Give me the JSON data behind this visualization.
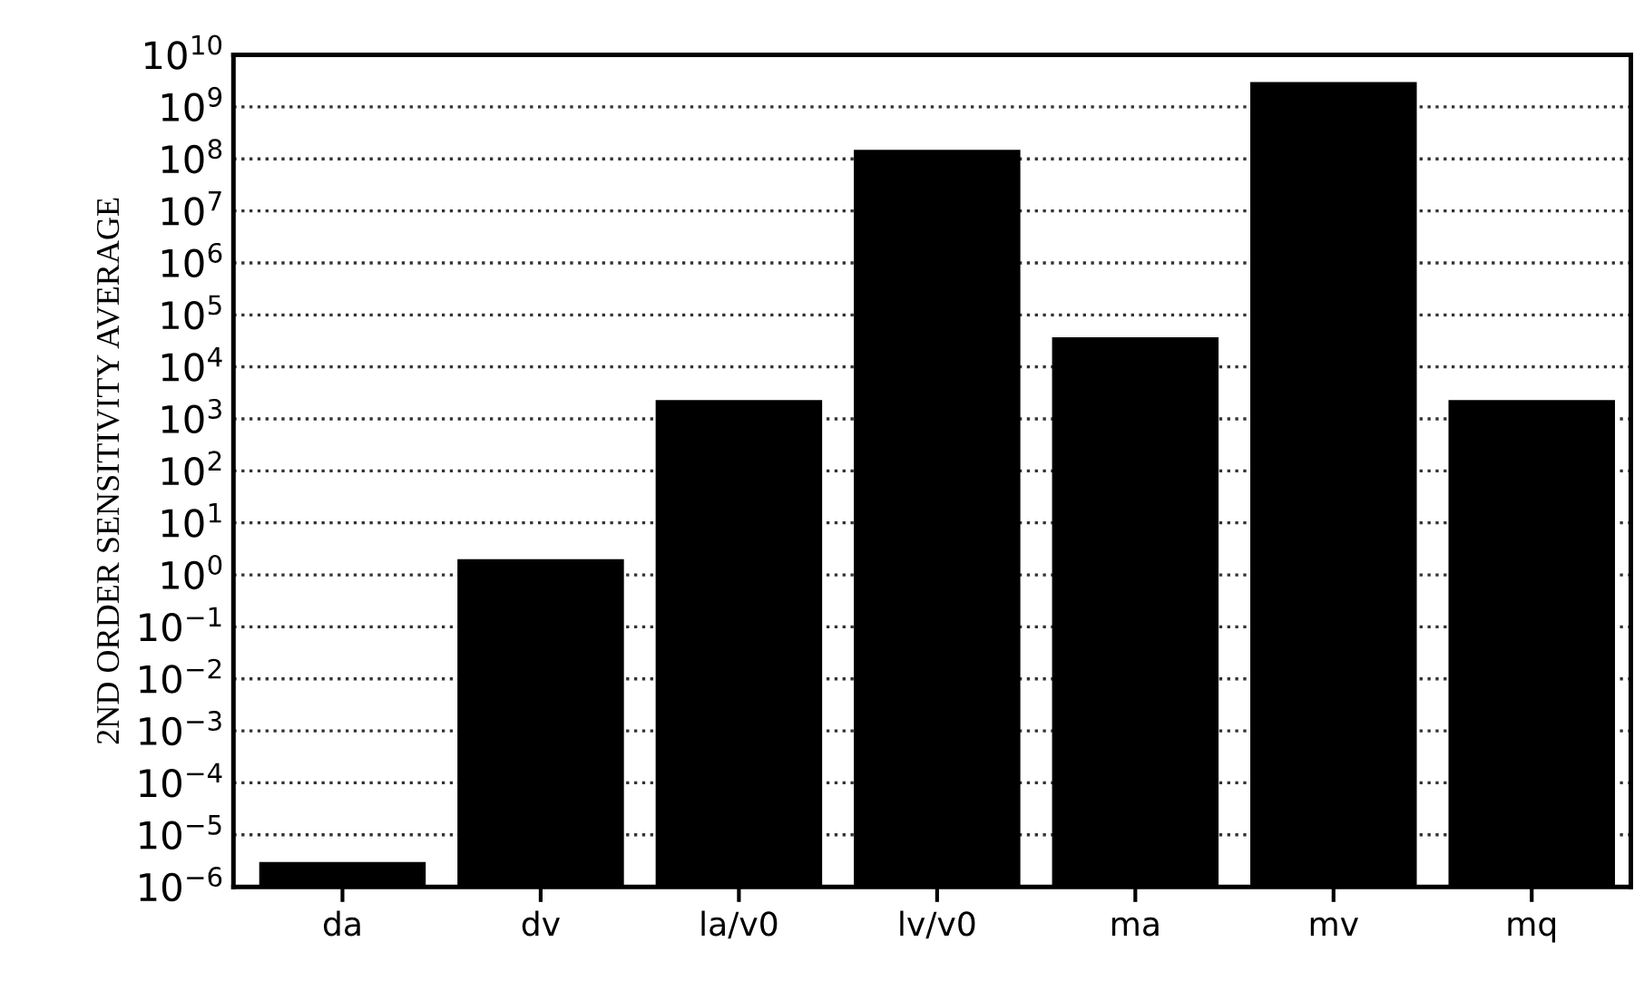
{
  "chart_data": {
    "type": "bar",
    "ylabel": "2ND ORDER SENSITIVITY AVERAGE",
    "categories": [
      "da",
      "dv",
      "la/v0",
      "lv/v0",
      "ma",
      "mv",
      "mq"
    ],
    "values": [
      3e-06,
      2,
      2300,
      150000000.0,
      37000.0,
      3000000000.0,
      2300
    ],
    "color": "#000000",
    "log": "y",
    "ylim": [
      1e-06,
      10000000000.0
    ],
    "yticks": [
      {
        "value": 1e-06,
        "label": "10$^{−6}$"
      },
      {
        "value": 1e-05,
        "label": "10$^{−5}$"
      },
      {
        "value": 0.0001,
        "label": "10$^{−4}$"
      },
      {
        "value": 0.001,
        "label": "10$^{−3}$"
      },
      {
        "value": 0.01,
        "label": "10$^{−2}$"
      },
      {
        "value": 0.1,
        "label": "10$^{−1}$"
      },
      {
        "value": 1,
        "label": "10$^{0}$"
      },
      {
        "value": 10,
        "label": "10$^{1}$"
      },
      {
        "value": 100,
        "label": "10$^{2}$"
      },
      {
        "value": 1000.0,
        "label": "10$^{3}$"
      },
      {
        "value": 10000.0,
        "label": "10$^{4}$"
      },
      {
        "value": 100000.0,
        "label": "10$^{5}$"
      },
      {
        "value": 1000000.0,
        "label": "10$^{6}$"
      },
      {
        "value": 10000000.0,
        "label": "10$^{7}$"
      },
      {
        "value": 100000000.0,
        "label": "10$^{8}$"
      },
      {
        "value": 1000000000.0,
        "label": "10$^{9}$"
      },
      {
        "value": 10000000000.0,
        "label": "10$^{10}$"
      }
    ],
    "grid": "y",
    "line_style": "dotted"
  }
}
